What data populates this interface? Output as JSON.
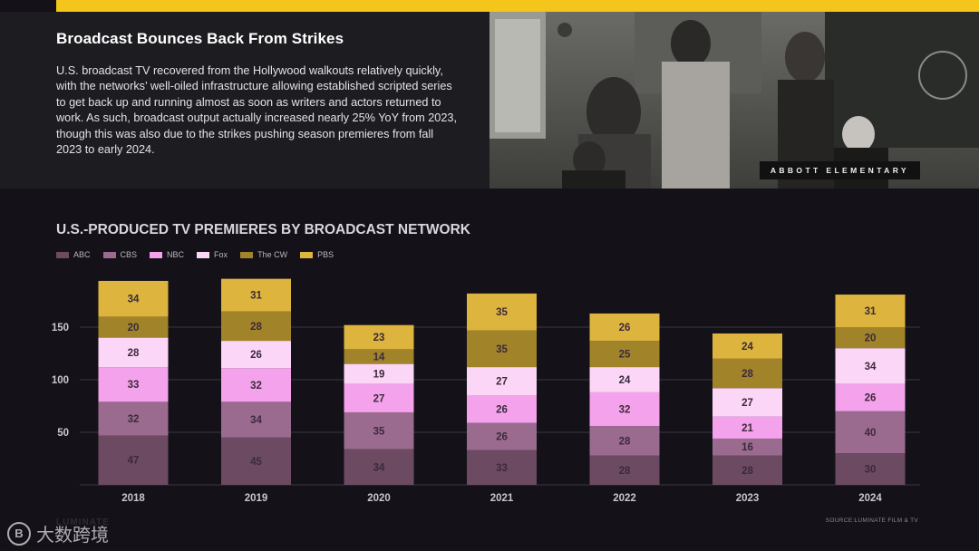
{
  "header": {
    "title": "Broadcast Bounces Back From Strikes",
    "body": "U.S. broadcast TV recovered from the Hollywood walkouts relatively quickly, with the networks’ well-oiled infrastructure allowing established scripted series to get back up and running almost as soon as writers and actors returned to work. As such, broadcast output actually increased nearly 25% YoY from 2023, though this was also due to the strikes pushing season premieres from fall 2023 to early 2024."
  },
  "photo": {
    "caption": "ABBOTT ELEMENTARY"
  },
  "chart_data": {
    "type": "bar",
    "stacked": true,
    "title": "U.S.-PRODUCED TV PREMIERES BY BROADCAST NETWORK",
    "xlabel": "",
    "ylabel": "",
    "categories": [
      "2018",
      "2019",
      "2020",
      "2021",
      "2022",
      "2023",
      "2024"
    ],
    "yticks": [
      50,
      100,
      150
    ],
    "ylim": [
      0,
      190
    ],
    "grid": true,
    "legend_position": "top-left",
    "series": [
      {
        "name": "ABC",
        "color": "#6b4a62",
        "values": [
          47,
          45,
          34,
          33,
          28,
          28,
          30
        ]
      },
      {
        "name": "CBS",
        "color": "#9a6b8f",
        "values": [
          32,
          34,
          35,
          26,
          28,
          16,
          40
        ]
      },
      {
        "name": "NBC",
        "color": "#f3a2eb",
        "values": [
          33,
          32,
          27,
          26,
          32,
          21,
          26
        ]
      },
      {
        "name": "Fox",
        "color": "#fcd6f7",
        "values": [
          28,
          26,
          19,
          27,
          24,
          27,
          34
        ]
      },
      {
        "name": "The CW",
        "color": "#a1832a",
        "values": [
          20,
          28,
          14,
          35,
          25,
          28,
          20
        ]
      },
      {
        "name": "PBS",
        "color": "#dcb43e",
        "values": [
          34,
          31,
          23,
          35,
          26,
          24,
          31
        ]
      }
    ]
  },
  "footer": {
    "source": "SOURCE:LUMINATE FILM & TV",
    "brand": "LUMINATE",
    "watermark": "大数跨境"
  }
}
